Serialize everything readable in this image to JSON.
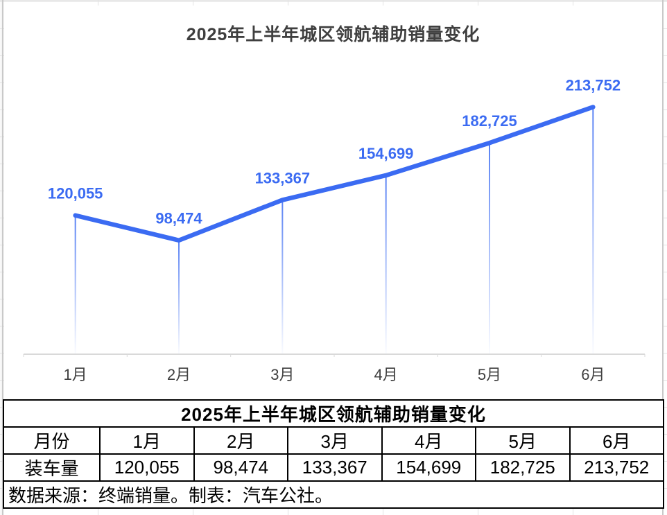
{
  "chart": {
    "title": "2025年上半年城区领航辅助销量变化",
    "accent_color": "#3B6BF2",
    "title_color": "#3F3F3F",
    "axis_color": "#D9D9D9",
    "axis_label_color": "#404040"
  },
  "chart_data": {
    "type": "line",
    "title": "2025年上半年城区领航辅助销量变化",
    "categories": [
      "1月",
      "2月",
      "3月",
      "4月",
      "5月",
      "6月"
    ],
    "series": [
      {
        "name": "装车量",
        "values": [
          120055,
          98474,
          133367,
          154699,
          182725,
          213752
        ]
      }
    ],
    "data_labels": [
      "120,055",
      "98,474",
      "133,367",
      "154,699",
      "182,725",
      "213,752"
    ],
    "ylim": [
      0,
      250000
    ],
    "grid": false,
    "legend": false,
    "line_width": 6.5,
    "drop_lines": true
  },
  "table": {
    "title": "2025年上半年城区领航辅助销量变化",
    "header_row": [
      "月份",
      "1月",
      "2月",
      "3月",
      "4月",
      "5月",
      "6月"
    ],
    "data_row": [
      "装车量",
      "120,055",
      "98,474",
      "133,367",
      "154,699",
      "182,725",
      "213,752"
    ],
    "source_note": "数据来源：终端销量。制表：汽车公社。"
  }
}
